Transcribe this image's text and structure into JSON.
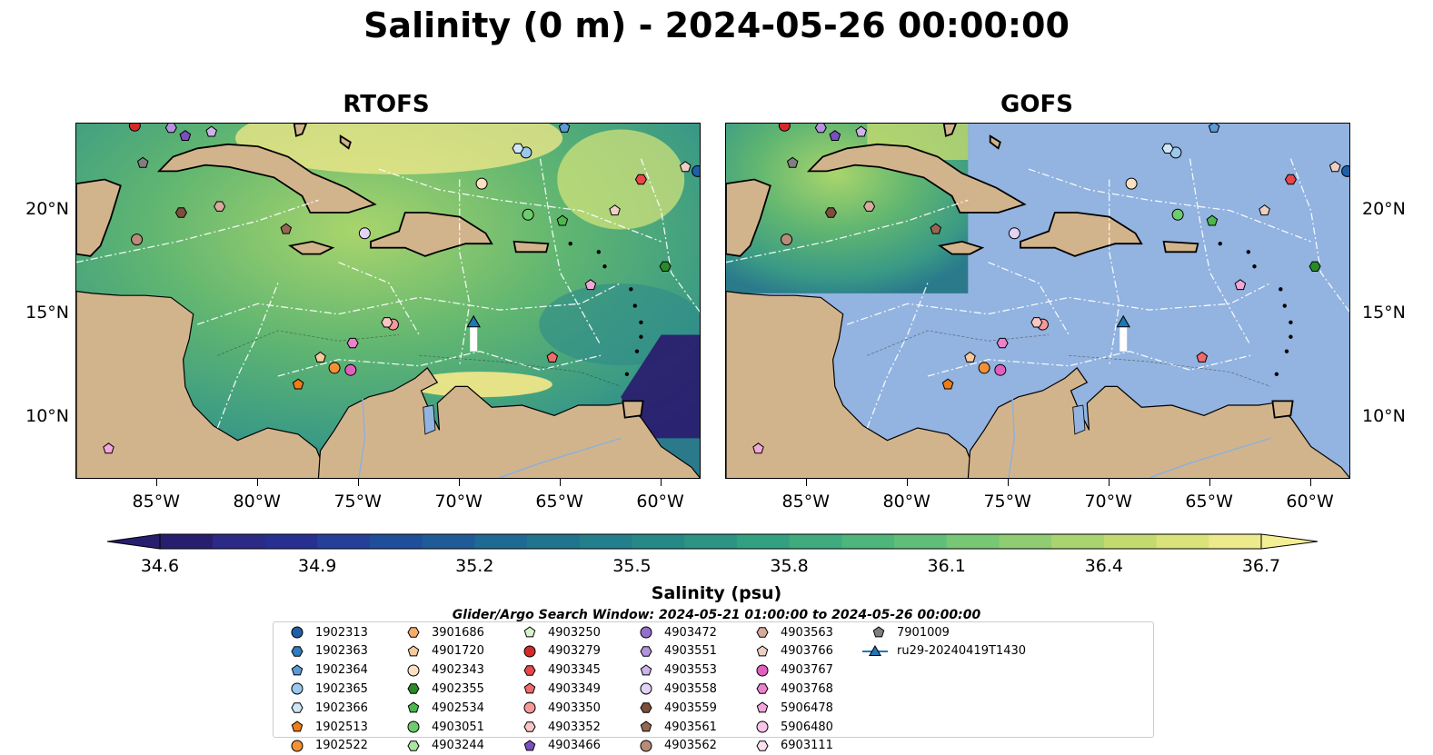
{
  "title": "Salinity (0 m) - 2024-05-26 00:00:00",
  "panels": [
    {
      "id": "rtofs",
      "title": "RTOFS"
    },
    {
      "id": "gofs",
      "title": "GOFS"
    }
  ],
  "map_extent": {
    "lon": [
      -89,
      -58
    ],
    "lat": [
      7,
      24.2
    ]
  },
  "lon_ticks": [
    "85°W",
    "80°W",
    "75°W",
    "70°W",
    "65°W",
    "60°W"
  ],
  "lat_ticks": [
    "20°N",
    "15°N",
    "10°N"
  ],
  "colors": {
    "land": "#d2b48c",
    "masked_ocean": "#93b3e0",
    "deep_salinity": "#2a1a6e",
    "high_salinity": "#f6e98a",
    "mid_salinity": "#5fb571",
    "border_line": "#ffffff",
    "glider_marker": "#1f77b4"
  },
  "colorbar": {
    "label": "Salinity (psu)",
    "ticks": [
      "34.6",
      "34.9",
      "35.2",
      "35.5",
      "35.8",
      "36.1",
      "36.4",
      "36.7"
    ],
    "min": 34.6,
    "max": 36.7,
    "colors": [
      "#281e6e",
      "#2b2a86",
      "#272f93",
      "#24409a",
      "#1f4e9b",
      "#1f5c97",
      "#1f6a92",
      "#21748e",
      "#227f8b",
      "#268988",
      "#2b9485",
      "#33a082",
      "#3fab7e",
      "#4eb57b",
      "#61be78",
      "#77c775",
      "#90cd72",
      "#aad46f",
      "#c3da70",
      "#dae27a",
      "#ecea8d"
    ]
  },
  "search_window": "Glider/Argo Search Window: 2024-05-21 01:00:00 to 2024-05-26 00:00:00",
  "legend": [
    {
      "label": "1902313",
      "shape": "circle",
      "color": "#1f5fa8"
    },
    {
      "label": "1902363",
      "shape": "hexagon",
      "color": "#2f7ec0"
    },
    {
      "label": "1902364",
      "shape": "pentagon",
      "color": "#5a9bd6"
    },
    {
      "label": "1902365",
      "shape": "circle",
      "color": "#9cc8ec"
    },
    {
      "label": "1902366",
      "shape": "hexagon",
      "color": "#cfe6f7"
    },
    {
      "label": "1902513",
      "shape": "pentagon",
      "color": "#f07c14"
    },
    {
      "label": "1902522",
      "shape": "circle",
      "color": "#f39135"
    },
    {
      "label": "3901686",
      "shape": "hexagon",
      "color": "#f6ad6a"
    },
    {
      "label": "4901720",
      "shape": "pentagon",
      "color": "#f8c99a"
    },
    {
      "label": "4902343",
      "shape": "circle",
      "color": "#fbe0c2"
    },
    {
      "label": "4902355",
      "shape": "hexagon",
      "color": "#2a8a2a"
    },
    {
      "label": "4902534",
      "shape": "pentagon",
      "color": "#4cb84c"
    },
    {
      "label": "4903051",
      "shape": "circle",
      "color": "#6dcc6d"
    },
    {
      "label": "4903244",
      "shape": "hexagon",
      "color": "#a9e5a0"
    },
    {
      "label": "4903250",
      "shape": "pentagon",
      "color": "#d6f3cf"
    },
    {
      "label": "4903279",
      "shape": "circle",
      "color": "#d42a2a"
    },
    {
      "label": "4903345",
      "shape": "hexagon",
      "color": "#e8484a"
    },
    {
      "label": "4903349",
      "shape": "pentagon",
      "color": "#f06b6b"
    },
    {
      "label": "4903350",
      "shape": "circle",
      "color": "#f59a9a"
    },
    {
      "label": "4903352",
      "shape": "hexagon",
      "color": "#f9c6c2"
    },
    {
      "label": "4903466",
      "shape": "pentagon",
      "color": "#7a4fbf"
    },
    {
      "label": "4903472",
      "shape": "circle",
      "color": "#9370cc"
    },
    {
      "label": "4903551",
      "shape": "hexagon",
      "color": "#b394dc"
    },
    {
      "label": "4903553",
      "shape": "pentagon",
      "color": "#cdb3ea"
    },
    {
      "label": "4903558",
      "shape": "circle",
      "color": "#e2d2f3"
    },
    {
      "label": "4903559",
      "shape": "hexagon",
      "color": "#7c4f3c"
    },
    {
      "label": "4903561",
      "shape": "pentagon",
      "color": "#956753"
    },
    {
      "label": "4903562",
      "shape": "circle",
      "color": "#b98b79"
    },
    {
      "label": "4903563",
      "shape": "hexagon",
      "color": "#d5ab9c"
    },
    {
      "label": "4903766",
      "shape": "pentagon",
      "color": "#ecd0c4"
    },
    {
      "label": "4903767",
      "shape": "circle",
      "color": "#e060c0"
    },
    {
      "label": "4903768",
      "shape": "hexagon",
      "color": "#ea83cc"
    },
    {
      "label": "5906478",
      "shape": "pentagon",
      "color": "#f3a6da"
    },
    {
      "label": "5906480",
      "shape": "circle",
      "color": "#f8c6e6"
    },
    {
      "label": "6903111",
      "shape": "hexagon",
      "color": "#fbe0f0"
    },
    {
      "label": "7901009",
      "shape": "pentagon",
      "color": "#7f7f7f"
    },
    {
      "label": "ru29-20240419T1430",
      "shape": "glider",
      "color": "#1f77b4"
    }
  ],
  "floats": [
    {
      "id": "1902313",
      "lon": -58.2,
      "lat": 21.9
    },
    {
      "id": "1902364",
      "lon": -64.8,
      "lat": 24.0
    },
    {
      "id": "1902365",
      "lon": -66.7,
      "lat": 22.8
    },
    {
      "id": "1902366",
      "lon": -67.1,
      "lat": 23.0
    },
    {
      "id": "1902513",
      "lon": -78.0,
      "lat": 11.6
    },
    {
      "id": "1902522",
      "lon": -76.2,
      "lat": 12.4
    },
    {
      "id": "4901720",
      "lon": -76.9,
      "lat": 12.9
    },
    {
      "id": "4902343",
      "lon": -68.9,
      "lat": 21.3
    },
    {
      "id": "4902355",
      "lon": -59.8,
      "lat": 17.3
    },
    {
      "id": "4902534",
      "lon": -64.9,
      "lat": 19.5
    },
    {
      "id": "4903051",
      "lon": -66.6,
      "lat": 19.8
    },
    {
      "id": "4903345",
      "lon": -61.0,
      "lat": 21.5
    },
    {
      "id": "4903349",
      "lon": -65.4,
      "lat": 12.9
    },
    {
      "id": "4903350",
      "lon": -73.3,
      "lat": 14.5
    },
    {
      "id": "4903352",
      "lon": -73.6,
      "lat": 14.6
    },
    {
      "id": "4903766",
      "lon": -62.3,
      "lat": 20.0
    },
    {
      "id": "4903767",
      "lon": -75.4,
      "lat": 12.3
    },
    {
      "id": "4903768",
      "lon": -75.3,
      "lat": 13.6
    },
    {
      "id": "5906478",
      "lon": -63.5,
      "lat": 16.4
    },
    {
      "id": "5906478",
      "lon": -87.4,
      "lat": 8.5
    },
    {
      "id": "4903562",
      "lon": -86.0,
      "lat": 18.6
    },
    {
      "id": "4903563",
      "lon": -81.9,
      "lat": 20.2
    },
    {
      "id": "4903559",
      "lon": -83.8,
      "lat": 19.9
    },
    {
      "id": "4903561",
      "lon": -78.6,
      "lat": 19.1
    },
    {
      "id": "4903558",
      "lon": -74.7,
      "lat": 18.9
    },
    {
      "id": "4903551",
      "lon": -84.3,
      "lat": 24.0
    },
    {
      "id": "4903553",
      "lon": -82.3,
      "lat": 23.8
    },
    {
      "id": "4903466",
      "lon": -83.6,
      "lat": 23.6
    },
    {
      "id": "7901009",
      "lon": -85.7,
      "lat": 22.3
    },
    {
      "id": "4903279",
      "lon": -86.1,
      "lat": 24.1
    },
    {
      "id": "4903766",
      "lon": -58.8,
      "lat": 22.1
    }
  ],
  "glider": {
    "id": "ru29-20240419T1430",
    "lon": -69.3,
    "lat": 14.6,
    "track": [
      [
        -69.3,
        13.2
      ],
      [
        -69.3,
        14.6
      ]
    ]
  }
}
